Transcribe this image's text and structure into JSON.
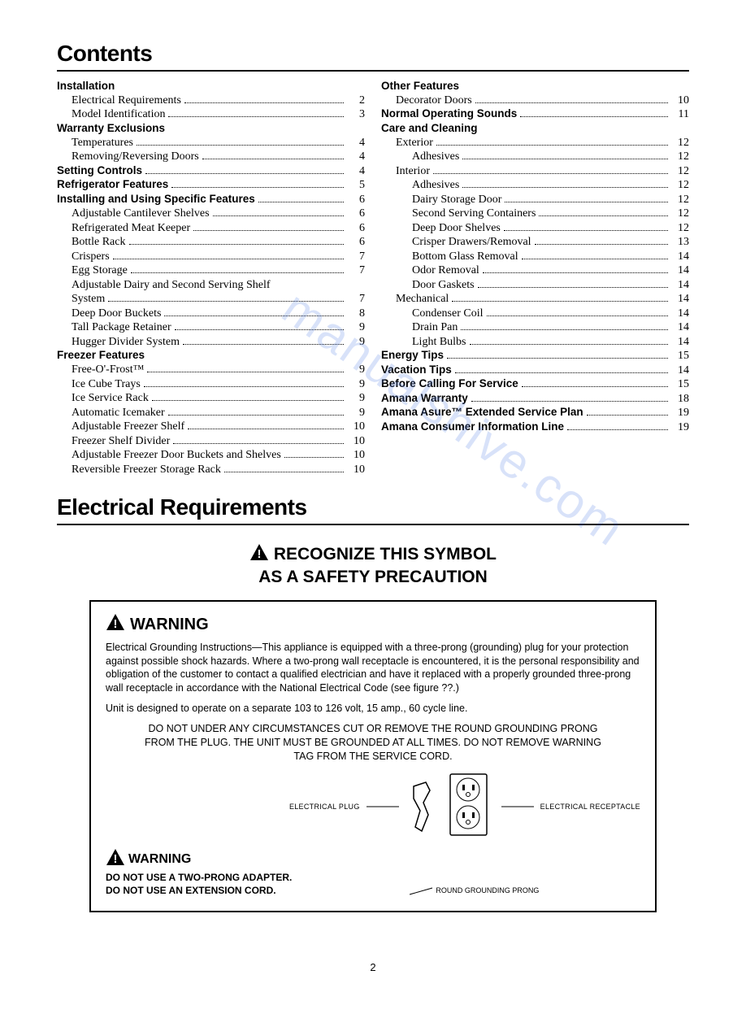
{
  "headings": {
    "contents": "Contents",
    "electrical": "Electrical Requirements",
    "safety1": "RECOGNIZE THIS SYMBOL",
    "safety2": "AS A SAFETY PRECAUTION"
  },
  "watermark": "manualshive.com",
  "toc_left": [
    {
      "label": "Installation",
      "bold": true,
      "indent": 0
    },
    {
      "label": "Electrical Requirements",
      "pg": "2",
      "indent": 1
    },
    {
      "label": "Model Identification",
      "pg": "3",
      "indent": 1
    },
    {
      "label": "Warranty Exclusions",
      "bold": true,
      "indent": 0
    },
    {
      "label": "Temperatures",
      "pg": "4",
      "indent": 1
    },
    {
      "label": "Removing/Reversing Doors",
      "pg": "4",
      "indent": 1
    },
    {
      "label": "Setting Controls",
      "bold": true,
      "pg": "4",
      "indent": 0
    },
    {
      "label": "Refrigerator Features",
      "bold": true,
      "pg": "5",
      "indent": 0
    },
    {
      "label": "Installing and Using Specific Features",
      "bold": true,
      "pg": "6",
      "indent": 0
    },
    {
      "label": "Adjustable Cantilever Shelves",
      "pg": "6",
      "indent": 1
    },
    {
      "label": "Refrigerated Meat Keeper",
      "pg": "6",
      "indent": 1
    },
    {
      "label": "Bottle Rack",
      "pg": "6",
      "indent": 1
    },
    {
      "label": "Crispers",
      "pg": "7",
      "indent": 1
    },
    {
      "label": "Egg Storage",
      "pg": "7",
      "indent": 1
    },
    {
      "label": "Adjustable Dairy and Second Serving Shelf",
      "indent": 1,
      "nowrap": true
    },
    {
      "label": "System",
      "pg": "7",
      "indent": 1
    },
    {
      "label": "Deep Door Buckets",
      "pg": "8",
      "indent": 1
    },
    {
      "label": "Tall Package Retainer",
      "pg": "9",
      "indent": 1
    },
    {
      "label": "Hugger Divider System",
      "pg": "9",
      "indent": 1
    },
    {
      "label": "Freezer Features",
      "bold": true,
      "indent": 0
    },
    {
      "label": "Free-O'-Frost™",
      "pg": "9",
      "indent": 1
    },
    {
      "label": "Ice Cube Trays",
      "pg": "9",
      "indent": 1
    },
    {
      "label": "Ice Service Rack",
      "pg": "9",
      "indent": 1
    },
    {
      "label": "Automatic Icemaker",
      "pg": "9",
      "indent": 1
    },
    {
      "label": "Adjustable Freezer Shelf",
      "pg": "10",
      "indent": 1
    },
    {
      "label": "Freezer Shelf Divider",
      "pg": "10",
      "indent": 1
    },
    {
      "label": "Adjustable Freezer Door Buckets and Shelves",
      "pg": "10",
      "indent": 1
    },
    {
      "label": "Reversible Freezer Storage Rack",
      "pg": "10",
      "indent": 1
    }
  ],
  "toc_right": [
    {
      "label": "Other Features",
      "bold": true,
      "indent": 0
    },
    {
      "label": "Decorator Doors",
      "pg": "10",
      "indent": 1
    },
    {
      "label": "Normal Operating Sounds",
      "bold": true,
      "pg": "11",
      "indent": 0
    },
    {
      "label": "Care and Cleaning",
      "bold": true,
      "indent": 0
    },
    {
      "label": "Exterior",
      "pg": "12",
      "indent": 1
    },
    {
      "label": "Adhesives",
      "pg": "12",
      "indent": 2
    },
    {
      "label": "Interior",
      "pg": "12",
      "indent": 1
    },
    {
      "label": "Adhesives",
      "pg": "12",
      "indent": 2
    },
    {
      "label": "Dairy Storage Door",
      "pg": "12",
      "indent": 2
    },
    {
      "label": "Second Serving Containers",
      "pg": "12",
      "indent": 2
    },
    {
      "label": "Deep Door Shelves",
      "pg": "12",
      "indent": 2
    },
    {
      "label": "Crisper Drawers/Removal",
      "pg": "13",
      "indent": 2
    },
    {
      "label": "Bottom Glass Removal",
      "pg": "14",
      "indent": 2
    },
    {
      "label": "Odor Removal",
      "pg": "14",
      "indent": 2
    },
    {
      "label": "Door Gaskets",
      "pg": "14",
      "indent": 2
    },
    {
      "label": "Mechanical",
      "pg": "14",
      "indent": 1
    },
    {
      "label": "Condenser Coil",
      "pg": "14",
      "indent": 2
    },
    {
      "label": "Drain Pan",
      "pg": "14",
      "indent": 2
    },
    {
      "label": "Light Bulbs",
      "pg": "14",
      "indent": 2
    },
    {
      "label": "Energy Tips",
      "bold": true,
      "pg": "15",
      "indent": 0
    },
    {
      "label": "Vacation Tips",
      "bold": true,
      "pg": "14",
      "indent": 0
    },
    {
      "label": "Before Calling For Service",
      "bold": true,
      "pg": "15",
      "indent": 0
    },
    {
      "label": "Amana Warranty",
      "bold": true,
      "pg": "18",
      "indent": 0
    },
    {
      "label": "Amana Asure™ Extended Service Plan",
      "bold": true,
      "pg": "19",
      "indent": 0
    },
    {
      "label": "Amana Consumer Information Line",
      "bold": true,
      "pg": "19",
      "indent": 0
    }
  ],
  "warning": {
    "title": "WARNING",
    "body1": "Electrical Grounding Instructions—This appliance is equipped with a three-prong (grounding) plug for your protection against possible shock hazards. Where a two-prong wall receptacle is encountered, it is the personal responsibility and obligation of the customer to contact a qualified electrician and have it replaced with a properly grounded three-prong wall receptacle in accordance with the National Electrical Code (see figure ??.)",
    "body2": "Unit is designed to operate on a separate 103 to 126 volt, 15 amp., 60 cycle line.",
    "caps": "DO NOT UNDER ANY CIRCUMSTANCES CUT OR REMOVE THE ROUND GROUNDING PRONG FROM THE PLUG. THE UNIT MUST BE GROUNDED AT ALL TIMES. DO NOT REMOVE WARNING TAG FROM THE SERVICE CORD.",
    "label_plug": "ELECTRICAL PLUG",
    "label_recept": "ELECTRICAL RECEPTACLE",
    "label_prong": "ROUND GROUNDING PRONG",
    "bottom_title": "WARNING",
    "bottom1": "DO NOT USE A TWO-PRONG ADAPTER.",
    "bottom2": "DO NOT USE AN EXTENSION CORD."
  },
  "page_number": "2"
}
